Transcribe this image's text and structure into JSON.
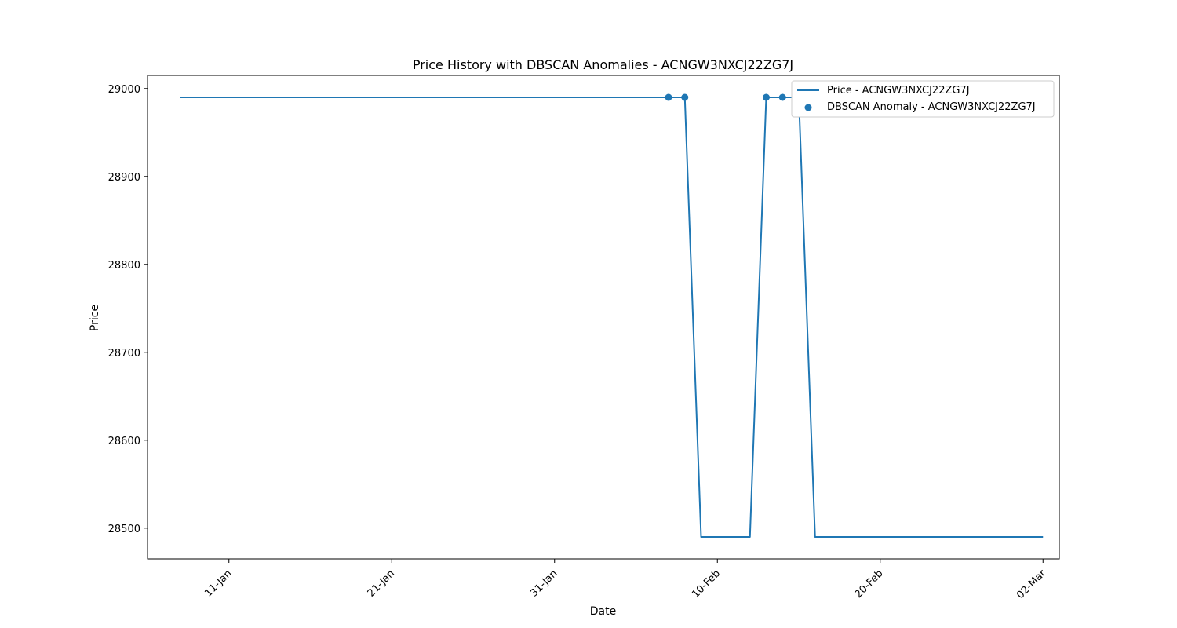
{
  "chart_data": {
    "type": "line",
    "title": "Price History with DBSCAN Anomalies - ACNGW3NXCJ22ZG7J",
    "xlabel": "Date",
    "ylabel": "Price",
    "x_ticks": [
      "11-Jan",
      "21-Jan",
      "31-Jan",
      "10-Feb",
      "20-Feb",
      "02-Mar"
    ],
    "y_ticks": [
      28500,
      28600,
      28700,
      28800,
      28900,
      29000
    ],
    "xlim": [
      "2025-01-06",
      "2025-03-03"
    ],
    "ylim": [
      28465,
      29015
    ],
    "grid": false,
    "legend_position": "top-right",
    "series": [
      {
        "name": "Price - ACNGW3NXCJ22ZG7J",
        "type": "line",
        "color": "#1f77b4",
        "points": [
          {
            "x": "2025-01-08",
            "y": 28990
          },
          {
            "x": "2025-02-07",
            "y": 28990
          },
          {
            "x": "2025-02-08",
            "y": 28990
          },
          {
            "x": "2025-02-09",
            "y": 28490
          },
          {
            "x": "2025-02-12",
            "y": 28490
          },
          {
            "x": "2025-02-13",
            "y": 28990
          },
          {
            "x": "2025-02-14",
            "y": 28990
          },
          {
            "x": "2025-02-15",
            "y": 28990
          },
          {
            "x": "2025-02-16",
            "y": 28490
          },
          {
            "x": "2025-03-02",
            "y": 28490
          }
        ]
      },
      {
        "name": "DBSCAN Anomaly - ACNGW3NXCJ22ZG7J",
        "type": "scatter",
        "color": "#1f77b4",
        "points": [
          {
            "x": "2025-02-07",
            "y": 28990
          },
          {
            "x": "2025-02-08",
            "y": 28990
          },
          {
            "x": "2025-02-13",
            "y": 28990
          },
          {
            "x": "2025-02-14",
            "y": 28990
          },
          {
            "x": "2025-02-15",
            "y": 28990
          }
        ]
      }
    ]
  }
}
